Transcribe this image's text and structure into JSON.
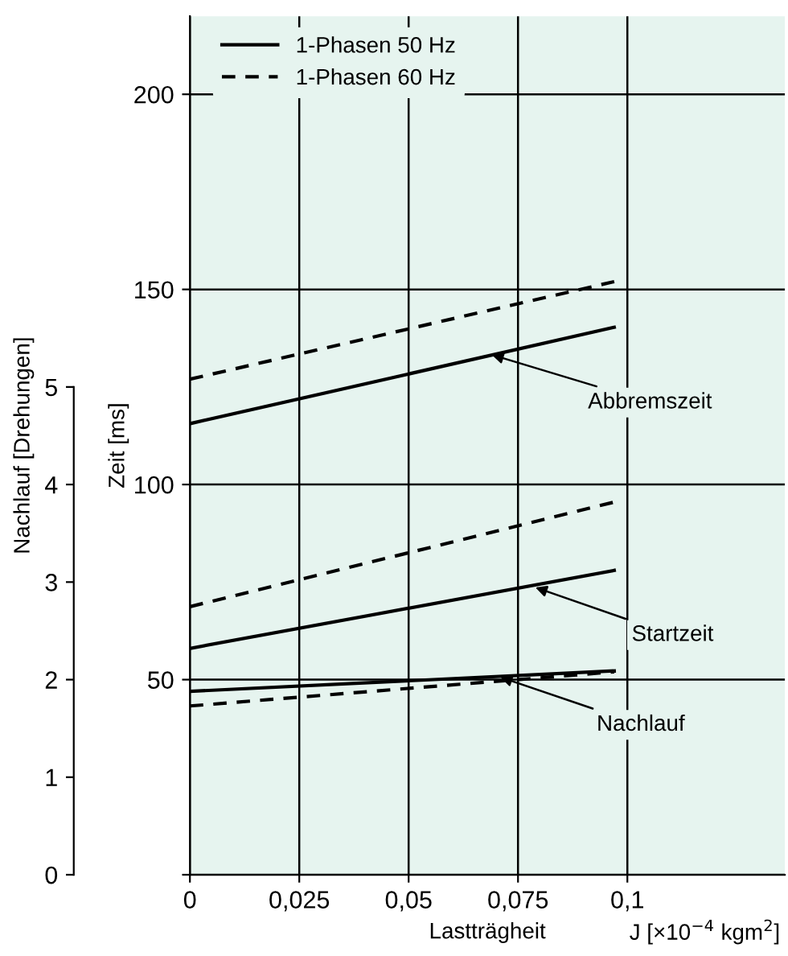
{
  "chart_data": {
    "type": "line",
    "xlabel": "Lastträgheit",
    "ylabel": "Zeit [ms]",
    "y2label": "Nachlauf [Drehungen]",
    "xlim": [
      0,
      0.136
    ],
    "xticks": [
      0,
      {
        "value": 0.025,
        "label": "0,025"
      },
      {
        "value": 0.05,
        "label": "0,05"
      },
      {
        "value": 0.075,
        "label": "0,075"
      },
      {
        "value": 0.1,
        "label": "0,1"
      }
    ],
    "ylim": [
      0,
      220
    ],
    "yticks": [
      {
        "value": 0,
        "label": null
      },
      50,
      100,
      150,
      200
    ],
    "y2lim": [
      0,
      8.8
    ],
    "y2ticks": [
      0,
      1,
      2,
      3,
      4,
      5
    ],
    "grid": true,
    "legend": "top left",
    "x": [
      0,
      0.097
    ],
    "series": [
      {
        "name": "1-Phasen 50 Hz",
        "color": "#000000",
        "line_style": "solid",
        "values": [
          115.6,
          140.3
        ]
      },
      {
        "name": "1-Phasen 60 Hz",
        "color": "#000000",
        "line_style": "dashed",
        "values": [
          127,
          152
        ]
      },
      {
        "color": "#000000",
        "line_style": "solid",
        "values": [
          58,
          78
        ]
      },
      {
        "color": "#000000",
        "line_style": "dashed",
        "values": [
          68.7,
          95.5
        ]
      },
      {
        "color": "#000000",
        "line_style": "solid",
        "axis": "y2",
        "values": [
          1.88,
          2.09
        ]
      },
      {
        "color": "#000000",
        "line_style": "dashed",
        "axis": "y2",
        "values": [
          1.73,
          2.08
        ]
      }
    ],
    "annotations": [
      {
        "text": "Abbremszeit",
        "x": 0.068,
        "y": 133.6
      },
      {
        "text": "Startzeit",
        "x": 0.078,
        "y": 74
      },
      {
        "text": "Nachlauf",
        "x": 0.07,
        "y": 51
      },
      "J [×10$^{−4}$ kgm$^{2}$]"
    ]
  }
}
